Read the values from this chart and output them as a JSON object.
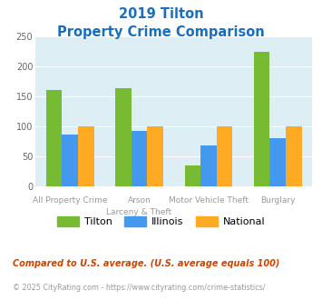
{
  "title_line1": "2019 Tilton",
  "title_line2": "Property Crime Comparison",
  "title_color": "#1a6fba",
  "cat_labels_line1": [
    "All Property Crime",
    "Arson",
    "Motor Vehicle Theft",
    "Burglary"
  ],
  "cat_labels_line2": [
    "",
    "Larceny & Theft",
    "",
    ""
  ],
  "tilton": [
    160,
    163,
    34,
    224
  ],
  "illinois": [
    86,
    92,
    68,
    80
  ],
  "national": [
    100,
    100,
    100,
    100
  ],
  "tilton_color": "#77bb33",
  "illinois_color": "#4499ee",
  "national_color": "#ffaa22",
  "bg_color": "#ddeef5",
  "ylim": [
    0,
    250
  ],
  "yticks": [
    0,
    50,
    100,
    150,
    200,
    250
  ],
  "footnote1": "Compared to U.S. average. (U.S. average equals 100)",
  "footnote2": "© 2025 CityRating.com - https://www.cityrating.com/crime-statistics/",
  "footnote1_color": "#cc4400",
  "footnote2_color": "#999999",
  "legend_labels": [
    "Tilton",
    "Illinois",
    "National"
  ]
}
